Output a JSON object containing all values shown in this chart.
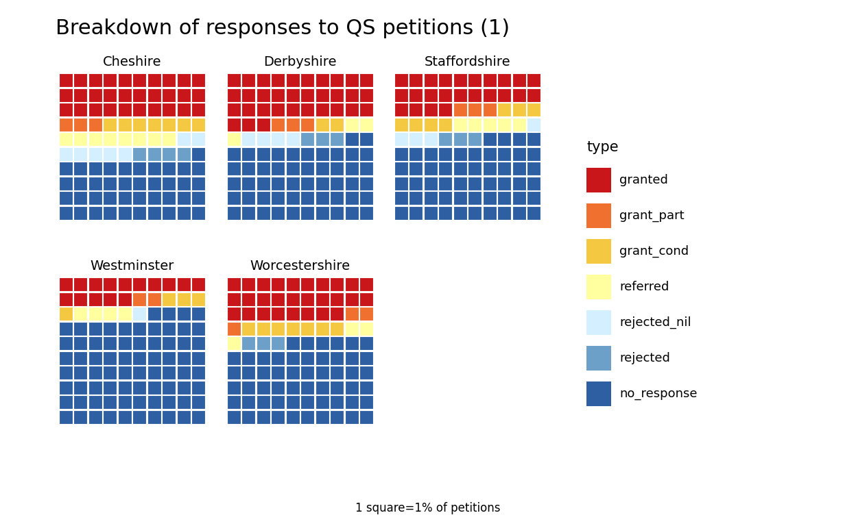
{
  "title": "Breakdown of responses to QS petitions (1)",
  "subtitle": "1 square=1% of petitions",
  "grid_size": 10,
  "colors": {
    "granted": "#C8161A",
    "grant_part": "#F07030",
    "grant_cond": "#F5C842",
    "referred": "#FFFFA0",
    "rejected_nil": "#D4EFFF",
    "rejected": "#6CA0C8",
    "no_response": "#2E5FA3"
  },
  "legend_labels": [
    "granted",
    "grant_part",
    "grant_cond",
    "referred",
    "rejected_nil",
    "rejected",
    "no_response"
  ],
  "county_data": {
    "Cheshire": {
      "granted": 30,
      "grant_part": 3,
      "grant_cond": 7,
      "referred": 8,
      "rejected_nil": 7,
      "rejected": 4,
      "no_response": 41
    },
    "Derbyshire": {
      "granted": 33,
      "grant_part": 3,
      "grant_cond": 2,
      "referred": 3,
      "rejected_nil": 4,
      "rejected": 3,
      "no_response": 52
    },
    "Staffordshire": {
      "granted": 24,
      "grant_part": 3,
      "grant_cond": 7,
      "referred": 5,
      "rejected_nil": 4,
      "rejected": 3,
      "no_response": 54
    },
    "Westminster": {
      "granted": 15,
      "grant_part": 2,
      "grant_cond": 4,
      "referred": 4,
      "rejected_nil": 1,
      "rejected": 0,
      "no_response": 74
    },
    "Worcestershire": {
      "granted": 28,
      "grant_part": 3,
      "grant_cond": 7,
      "referred": 3,
      "rejected_nil": 0,
      "rejected": 3,
      "no_response": 56
    }
  },
  "layout": {
    "top_row": [
      "Cheshire",
      "Derbyshire",
      "Staffordshire"
    ],
    "bottom_row": [
      "Westminster",
      "Worcestershire"
    ]
  },
  "background_color": "#FFFFFF",
  "title_fontsize": 22,
  "label_fontsize": 14,
  "legend_fontsize": 13
}
